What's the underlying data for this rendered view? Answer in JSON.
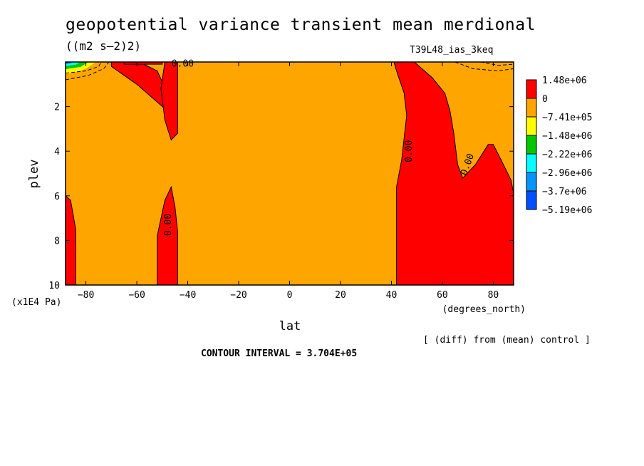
{
  "header": {
    "title": "geopotential variance transient mean merdional",
    "units": "((m2 s–2)2)",
    "experiment": "T39L48_ias_3keq"
  },
  "footer": {
    "contour_interval": "CONTOUR INTERVAL = 3.704E+05",
    "diff_note": "[ (diff) from (mean) control ]"
  },
  "chart_data": {
    "type": "contour",
    "xlabel": "lat",
    "xunit": "(degrees_north)",
    "ylabel": "plev",
    "yunit": "(x1E4 Pa)",
    "xlim": [
      -88,
      88
    ],
    "ylim": [
      10,
      0
    ],
    "xticks": [
      -80,
      -60,
      -40,
      -20,
      0,
      20,
      40,
      60,
      80
    ],
    "xtick_labels": [
      "−80",
      "−60",
      "−40",
      "−20",
      "0",
      "20",
      "40",
      "60",
      "80"
    ],
    "yticks": [
      2,
      4,
      6,
      8,
      10
    ],
    "ytick_labels": [
      "2",
      "4",
      "6",
      "8",
      "10"
    ],
    "background_level_color": "#ffa500",
    "regions": [
      {
        "level": "1.48e+06",
        "color": "#ff0000",
        "points": [
          [
            -70,
            0
          ],
          [
            -59,
            0
          ],
          [
            -52,
            0.4
          ],
          [
            -48,
            1.4
          ],
          [
            -46,
            2.4
          ],
          [
            -52,
            1.8
          ],
          [
            -60,
            1.0
          ],
          [
            -70,
            0.2
          ]
        ]
      },
      {
        "level": "1.48e+06",
        "color": "#ff0000",
        "points": [
          [
            -49,
            0
          ],
          [
            -44,
            0
          ],
          [
            -44,
            3.2
          ],
          [
            -46.5,
            3.5
          ],
          [
            -49,
            2.6
          ],
          [
            -50.5,
            1.2
          ]
        ]
      },
      {
        "level": "1.48e+06",
        "color": "#ff0000",
        "points": [
          [
            -52,
            10
          ],
          [
            -52,
            7.8
          ],
          [
            -49,
            6.2
          ],
          [
            -46.5,
            5.6
          ],
          [
            -45,
            6.5
          ],
          [
            -44,
            7.6
          ],
          [
            -44,
            10
          ]
        ]
      },
      {
        "level": "1.48e+06",
        "color": "#ff0000",
        "points": [
          [
            -88,
            6
          ],
          [
            -86,
            6.2
          ],
          [
            -84,
            7.5
          ],
          [
            -84,
            10
          ],
          [
            -88,
            10
          ]
        ]
      },
      {
        "level": "1.48e+06",
        "color": "#ff0000",
        "points": [
          [
            -65,
            0
          ],
          [
            -50,
            0
          ],
          [
            -50,
            0.1
          ],
          [
            -65,
            0.1
          ]
        ]
      },
      {
        "level": "1.48e+06",
        "color": "#ff0000",
        "points": [
          [
            41,
            0
          ],
          [
            49,
            0
          ],
          [
            56,
            0.7
          ],
          [
            61,
            1.4
          ],
          [
            63,
            2.2
          ],
          [
            64.5,
            3.2
          ],
          [
            66,
            4.6
          ],
          [
            68,
            5.2
          ],
          [
            73,
            4.6
          ],
          [
            78,
            3.7
          ],
          [
            80,
            3.7
          ],
          [
            84,
            4.6
          ],
          [
            87,
            5.3
          ],
          [
            88,
            5.9
          ],
          [
            88,
            10
          ],
          [
            42,
            10
          ],
          [
            42,
            5.6
          ],
          [
            44,
            4.4
          ],
          [
            45,
            3.4
          ],
          [
            46,
            2.4
          ],
          [
            45,
            1.4
          ],
          [
            42,
            0.4
          ]
        ]
      }
    ],
    "dashed_lines": [
      [
        [
          -88,
          0.8
        ],
        [
          -79,
          0.6
        ],
        [
          -73,
          0.3
        ],
        [
          -71,
          0
        ]
      ],
      [
        [
          -88,
          0.5
        ],
        [
          -80,
          0.4
        ],
        [
          -75,
          0.2
        ],
        [
          -74,
          0
        ]
      ],
      [
        [
          65,
          0
        ],
        [
          72,
          0.3
        ],
        [
          82,
          0.4
        ],
        [
          88,
          0.3
        ]
      ],
      [
        [
          75,
          0
        ],
        [
          82,
          0.15
        ],
        [
          88,
          0.1
        ]
      ]
    ],
    "top_left_anomaly": {
      "level": "-5.19e+06",
      "points": [
        [
          -88,
          0
        ],
        [
          -76,
          0
        ],
        [
          -80,
          0.3
        ],
        [
          -84,
          0.45
        ],
        [
          -88,
          0.55
        ]
      ]
    },
    "contour_labels": [
      {
        "text": "0.00",
        "lat": -42,
        "plev": 0.1,
        "rotate": 0
      },
      {
        "text": "0.00",
        "lat": 47,
        "plev": 4.0,
        "rotate": -90
      },
      {
        "text": "0.00",
        "lat": 70,
        "plev": 4.6,
        "rotate": -70
      },
      {
        "text": "0.00",
        "lat": -47.5,
        "plev": 7.3,
        "rotate": -90
      }
    ],
    "legend": {
      "placement": "right",
      "entries": [
        {
          "label": "1.48e+06",
          "color": "#ff0000"
        },
        {
          "label": "0",
          "color": "#ffa500"
        },
        {
          "label": "−7.41e+05",
          "color": "#ffff00"
        },
        {
          "label": "−1.48e+06",
          "color": "#00c800"
        },
        {
          "label": "−2.22e+06",
          "color": "#00ffff"
        },
        {
          "label": "−2.96e+06",
          "color": "#0096ff"
        },
        {
          "label": "−3.7e+06",
          "color": "#0050ff"
        },
        {
          "label": "−5.19e+06",
          "color": null
        }
      ]
    }
  }
}
